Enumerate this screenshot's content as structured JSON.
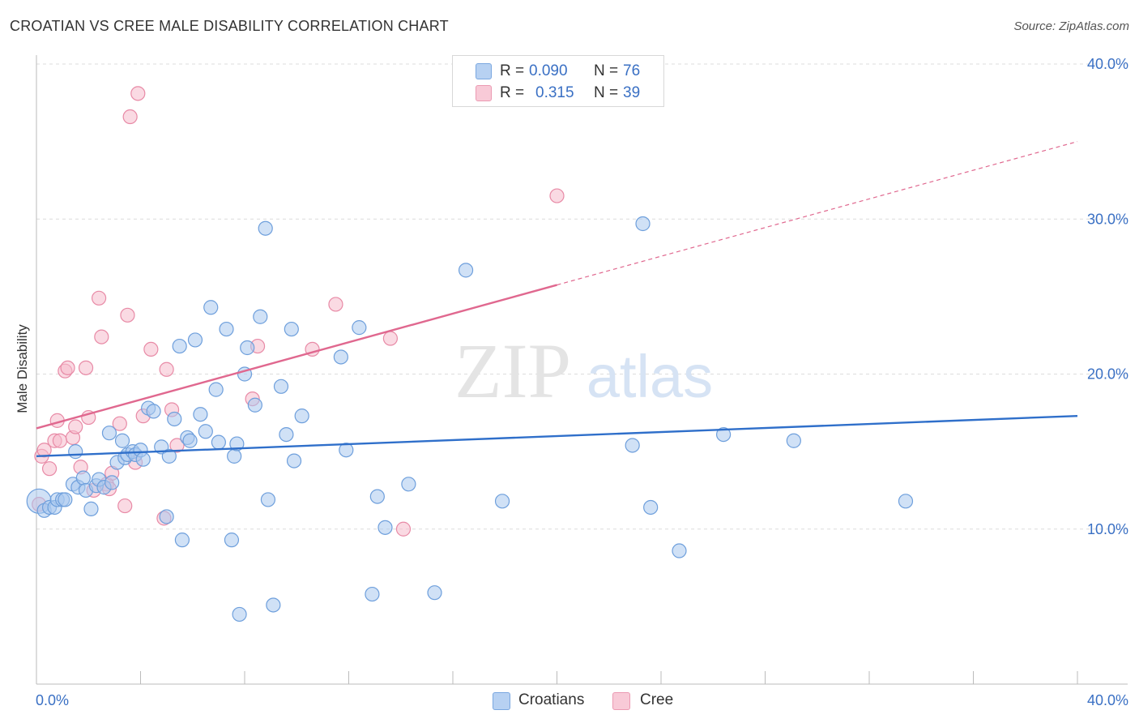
{
  "header": {
    "title": "CROATIAN VS CREE MALE DISABILITY CORRELATION CHART",
    "source": "Source: ZipAtlas.com"
  },
  "watermark": {
    "zip": "ZIP",
    "atlas": "atlas"
  },
  "legend": {
    "series": [
      {
        "r_label": "R =",
        "r_value": "0.090",
        "n_label": "N =",
        "n_value": "76"
      },
      {
        "r_label": "R =",
        "r_value": "0.315",
        "n_label": "N =",
        "n_value": "39"
      }
    ]
  },
  "bottom_legend": {
    "items": [
      "Croatians",
      "Cree"
    ]
  },
  "chart_data": {
    "type": "scatter",
    "title": "CROATIAN VS CREE MALE DISABILITY CORRELATION CHART",
    "ylabel": "Male Disability",
    "xlabel": "",
    "xlim": [
      0,
      40
    ],
    "ylim": [
      0,
      40
    ],
    "x_tick_labels": [
      "0.0%",
      "40.0%"
    ],
    "y_ticks": [
      10,
      20,
      30,
      40
    ],
    "y_tick_labels": [
      "10.0%",
      "20.0%",
      "30.0%",
      "40.0%"
    ],
    "grid": true,
    "legend_position": "top-center",
    "colors": {
      "croatians_fill": "#a9c8ef",
      "croatians_stroke": "#6e9fdc",
      "croatians_line": "#2f6fca",
      "cree_fill": "#f6bccc",
      "cree_stroke": "#e88aa6",
      "cree_line": "#e0688f"
    },
    "series": [
      {
        "name": "Croatians",
        "r": 0.09,
        "n": 76,
        "trend": {
          "x": [
            0,
            40
          ],
          "y": [
            14.7,
            17.3
          ],
          "dashed_from": null
        },
        "points": [
          [
            0.1,
            11.8
          ],
          [
            0.3,
            11.2
          ],
          [
            0.5,
            11.4
          ],
          [
            0.7,
            11.4
          ],
          [
            0.8,
            11.9
          ],
          [
            1.0,
            11.9
          ],
          [
            1.1,
            11.9
          ],
          [
            1.4,
            12.9
          ],
          [
            1.5,
            15.0
          ],
          [
            1.6,
            12.7
          ],
          [
            1.8,
            13.3
          ],
          [
            1.9,
            12.5
          ],
          [
            2.1,
            11.3
          ],
          [
            2.3,
            12.8
          ],
          [
            2.4,
            13.2
          ],
          [
            2.6,
            12.7
          ],
          [
            2.8,
            16.2
          ],
          [
            2.9,
            13.0
          ],
          [
            3.1,
            14.3
          ],
          [
            3.3,
            15.7
          ],
          [
            3.4,
            14.6
          ],
          [
            3.5,
            14.8
          ],
          [
            3.7,
            15.0
          ],
          [
            3.8,
            14.8
          ],
          [
            4.0,
            15.1
          ],
          [
            4.1,
            14.5
          ],
          [
            4.3,
            17.8
          ],
          [
            4.5,
            17.6
          ],
          [
            4.8,
            15.3
          ],
          [
            5.0,
            10.8
          ],
          [
            5.1,
            14.7
          ],
          [
            5.3,
            17.1
          ],
          [
            5.5,
            21.8
          ],
          [
            5.6,
            9.3
          ],
          [
            5.8,
            15.9
          ],
          [
            5.9,
            15.7
          ],
          [
            6.1,
            22.2
          ],
          [
            6.3,
            17.4
          ],
          [
            6.5,
            16.3
          ],
          [
            6.7,
            24.3
          ],
          [
            6.9,
            19.0
          ],
          [
            7.0,
            15.6
          ],
          [
            7.3,
            22.9
          ],
          [
            7.5,
            9.3
          ],
          [
            7.6,
            14.7
          ],
          [
            7.7,
            15.5
          ],
          [
            7.8,
            4.5
          ],
          [
            8.0,
            20.0
          ],
          [
            8.1,
            21.7
          ],
          [
            8.4,
            18.0
          ],
          [
            8.6,
            23.7
          ],
          [
            8.8,
            29.4
          ],
          [
            8.9,
            11.9
          ],
          [
            9.1,
            5.1
          ],
          [
            9.4,
            19.2
          ],
          [
            9.6,
            16.1
          ],
          [
            9.8,
            22.9
          ],
          [
            9.9,
            14.4
          ],
          [
            10.2,
            17.3
          ],
          [
            11.7,
            21.1
          ],
          [
            11.9,
            15.1
          ],
          [
            12.4,
            23.0
          ],
          [
            12.9,
            5.8
          ],
          [
            13.1,
            12.1
          ],
          [
            13.4,
            10.1
          ],
          [
            14.3,
            12.9
          ],
          [
            15.3,
            5.9
          ],
          [
            16.5,
            26.7
          ],
          [
            17.9,
            11.8
          ],
          [
            22.9,
            15.4
          ],
          [
            23.3,
            29.7
          ],
          [
            23.6,
            11.4
          ],
          [
            24.7,
            8.6
          ],
          [
            26.4,
            16.1
          ],
          [
            29.1,
            15.7
          ],
          [
            33.4,
            11.8
          ]
        ]
      },
      {
        "name": "Cree",
        "r": 0.315,
        "n": 39,
        "trend": {
          "x": [
            0,
            40
          ],
          "y": [
            16.5,
            35.0
          ],
          "dashed_from": 20.0
        },
        "points": [
          [
            0.1,
            11.6
          ],
          [
            0.2,
            14.7
          ],
          [
            0.3,
            15.1
          ],
          [
            0.5,
            13.9
          ],
          [
            0.7,
            15.7
          ],
          [
            0.8,
            17.0
          ],
          [
            0.9,
            15.7
          ],
          [
            1.1,
            20.2
          ],
          [
            1.2,
            20.4
          ],
          [
            1.4,
            15.9
          ],
          [
            1.5,
            16.6
          ],
          [
            1.7,
            14.0
          ],
          [
            1.9,
            20.4
          ],
          [
            2.0,
            17.2
          ],
          [
            2.2,
            12.5
          ],
          [
            2.4,
            24.9
          ],
          [
            2.5,
            22.4
          ],
          [
            2.7,
            12.9
          ],
          [
            2.8,
            12.6
          ],
          [
            2.9,
            13.6
          ],
          [
            3.2,
            16.8
          ],
          [
            3.4,
            11.5
          ],
          [
            3.5,
            23.8
          ],
          [
            3.6,
            36.6
          ],
          [
            3.8,
            14.3
          ],
          [
            3.9,
            38.1
          ],
          [
            4.1,
            17.3
          ],
          [
            4.4,
            21.6
          ],
          [
            4.9,
            10.7
          ],
          [
            5.0,
            20.3
          ],
          [
            5.2,
            17.7
          ],
          [
            5.4,
            15.4
          ],
          [
            8.3,
            18.4
          ],
          [
            8.5,
            21.8
          ],
          [
            10.6,
            21.6
          ],
          [
            11.5,
            24.5
          ],
          [
            13.6,
            22.3
          ],
          [
            14.1,
            10.0
          ],
          [
            20.0,
            31.5
          ]
        ]
      }
    ]
  }
}
